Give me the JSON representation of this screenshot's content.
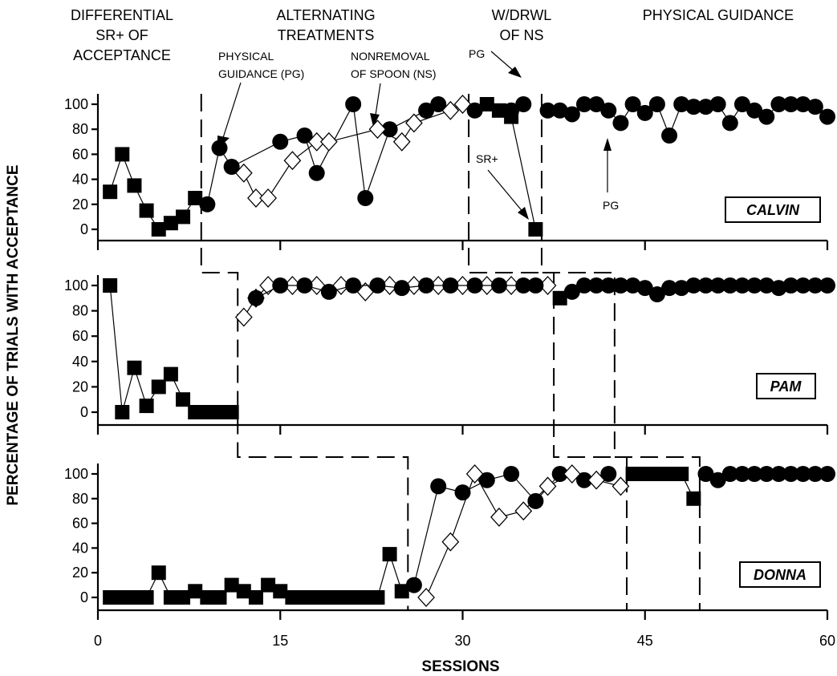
{
  "phase_labels": [
    {
      "id": "p1-l1",
      "text": "DIFFERENTIAL"
    },
    {
      "id": "p1-l2",
      "text": "SR+ OF"
    },
    {
      "id": "p1-l3",
      "text": "ACCEPTANCE"
    },
    {
      "id": "p2-l1",
      "text": "ALTERNATING"
    },
    {
      "id": "p2-l2",
      "text": "TREATMENTS"
    },
    {
      "id": "p3-l1",
      "text": "W/DRWL"
    },
    {
      "id": "p3-l2",
      "text": "OF NS"
    },
    {
      "id": "p4-l1",
      "text": "PHYSICAL GUIDANCE"
    }
  ],
  "annotations": [
    {
      "id": "pg-l1",
      "text": "PHYSICAL"
    },
    {
      "id": "pg-l2",
      "text": "GUIDANCE (PG)"
    },
    {
      "id": "ns-l1",
      "text": "NONREMOVAL"
    },
    {
      "id": "ns-l2",
      "text": "OF SPOON (NS)"
    },
    {
      "id": "pg2",
      "text": "PG"
    },
    {
      "id": "srplus",
      "text": "SR+"
    },
    {
      "id": "pg3",
      "text": "PG"
    }
  ],
  "chart_data": {
    "type": "line",
    "xlabel": "SESSIONS",
    "ylabel": "PERCENTAGE OF TRIALS WITH ACCEPTANCE",
    "xlim": [
      0,
      60
    ],
    "x_ticks": [
      0,
      15,
      30,
      45,
      60
    ],
    "ylim": [
      0,
      100
    ],
    "y_ticks": [
      0,
      20,
      40,
      60,
      80,
      100
    ],
    "panels": [
      {
        "participant": "CALVIN",
        "series": [
          {
            "marker": "filled-square",
            "points": [
              [
                1,
                30
              ],
              [
                2,
                60
              ],
              [
                3,
                35
              ],
              [
                4,
                15
              ],
              [
                5,
                0
              ],
              [
                6,
                5
              ],
              [
                7,
                10
              ],
              [
                8,
                25
              ]
            ]
          },
          {
            "marker": "filled-circle",
            "points": [
              [
                9,
                20
              ],
              [
                10,
                65
              ],
              [
                11,
                50
              ],
              [
                15,
                70
              ],
              [
                17,
                75
              ],
              [
                18,
                45
              ],
              [
                21,
                100
              ],
              [
                22,
                25
              ],
              [
                24,
                80
              ],
              [
                27,
                95
              ],
              [
                28,
                100
              ]
            ]
          },
          {
            "marker": "open-diamond",
            "points": [
              [
                12,
                45
              ],
              [
                13,
                25
              ],
              [
                14,
                25
              ],
              [
                16,
                55
              ],
              [
                18,
                70
              ],
              [
                19,
                70
              ],
              [
                23,
                80
              ],
              [
                25,
                70
              ],
              [
                26,
                85
              ],
              [
                29,
                95
              ],
              [
                30,
                100
              ]
            ]
          },
          {
            "marker": "filled-circle",
            "points": [
              [
                31,
                95
              ],
              [
                34,
                95
              ],
              [
                35,
                100
              ]
            ]
          },
          {
            "marker": "filled-square",
            "points": [
              [
                32,
                100
              ],
              [
                33,
                95
              ],
              [
                34,
                90
              ],
              [
                36,
                0
              ]
            ]
          },
          {
            "marker": "filled-circle",
            "points": [
              [
                37,
                95
              ],
              [
                38,
                95
              ],
              [
                39,
                92
              ],
              [
                40,
                100
              ],
              [
                41,
                100
              ],
              [
                42,
                95
              ],
              [
                43,
                85
              ],
              [
                44,
                100
              ],
              [
                45,
                93
              ],
              [
                46,
                100
              ],
              [
                47,
                75
              ],
              [
                48,
                100
              ],
              [
                49,
                98
              ],
              [
                50,
                98
              ],
              [
                51,
                100
              ],
              [
                52,
                85
              ],
              [
                53,
                100
              ],
              [
                54,
                95
              ],
              [
                55,
                90
              ],
              [
                56,
                100
              ],
              [
                57,
                100
              ],
              [
                58,
                100
              ],
              [
                59,
                98
              ],
              [
                60,
                90
              ]
            ]
          }
        ]
      },
      {
        "participant": "PAM",
        "series": [
          {
            "marker": "filled-square",
            "points": [
              [
                1,
                100
              ],
              [
                2,
                0
              ],
              [
                3,
                35
              ],
              [
                4,
                5
              ],
              [
                5,
                20
              ],
              [
                6,
                30
              ],
              [
                7,
                10
              ],
              [
                8,
                0
              ],
              [
                9,
                0
              ],
              [
                10,
                0
              ],
              [
                11,
                0
              ]
            ]
          },
          {
            "marker": "open-diamond",
            "points": [
              [
                12,
                75
              ],
              [
                13,
                90
              ],
              [
                14,
                100
              ],
              [
                16,
                100
              ],
              [
                18,
                100
              ],
              [
                20,
                100
              ],
              [
                22,
                95
              ],
              [
                24,
                100
              ],
              [
                26,
                100
              ],
              [
                28,
                100
              ],
              [
                30,
                100
              ],
              [
                32,
                100
              ],
              [
                34,
                100
              ],
              [
                37,
                100
              ]
            ]
          },
          {
            "marker": "filled-circle",
            "points": [
              [
                13,
                90
              ],
              [
                15,
                100
              ],
              [
                17,
                100
              ],
              [
                19,
                95
              ],
              [
                21,
                100
              ],
              [
                23,
                100
              ],
              [
                25,
                98
              ],
              [
                27,
                100
              ],
              [
                29,
                100
              ],
              [
                31,
                100
              ],
              [
                33,
                100
              ],
              [
                35,
                100
              ],
              [
                36,
                100
              ]
            ]
          },
          {
            "marker": "filled-square",
            "points": [
              [
                38,
                90
              ]
            ]
          },
          {
            "marker": "filled-circle",
            "points": [
              [
                39,
                95
              ],
              [
                40,
                100
              ],
              [
                41,
                100
              ],
              [
                42,
                100
              ],
              [
                43,
                100
              ],
              [
                44,
                100
              ],
              [
                45,
                98
              ],
              [
                46,
                93
              ],
              [
                47,
                98
              ],
              [
                48,
                98
              ],
              [
                49,
                100
              ],
              [
                50,
                100
              ],
              [
                51,
                100
              ],
              [
                52,
                100
              ],
              [
                53,
                100
              ],
              [
                54,
                100
              ],
              [
                55,
                100
              ],
              [
                56,
                98
              ],
              [
                57,
                100
              ],
              [
                58,
                100
              ],
              [
                59,
                100
              ],
              [
                60,
                100
              ]
            ]
          }
        ]
      },
      {
        "participant": "DONNA",
        "series": [
          {
            "marker": "filled-square",
            "points": [
              [
                1,
                0
              ],
              [
                2,
                0
              ],
              [
                3,
                0
              ],
              [
                4,
                0
              ],
              [
                5,
                20
              ],
              [
                6,
                0
              ],
              [
                7,
                0
              ],
              [
                8,
                5
              ],
              [
                9,
                0
              ],
              [
                10,
                0
              ],
              [
                11,
                10
              ],
              [
                12,
                5
              ],
              [
                13,
                0
              ],
              [
                14,
                10
              ],
              [
                15,
                5
              ],
              [
                16,
                0
              ],
              [
                17,
                0
              ],
              [
                18,
                0
              ],
              [
                19,
                0
              ],
              [
                20,
                0
              ],
              [
                21,
                0
              ],
              [
                22,
                0
              ],
              [
                23,
                0
              ],
              [
                24,
                35
              ],
              [
                25,
                5
              ]
            ]
          },
          {
            "marker": "filled-circle",
            "points": [
              [
                26,
                10
              ],
              [
                28,
                90
              ],
              [
                30,
                85
              ],
              [
                32,
                95
              ],
              [
                34,
                100
              ],
              [
                36,
                78
              ],
              [
                38,
                100
              ],
              [
                40,
                95
              ],
              [
                42,
                100
              ]
            ]
          },
          {
            "marker": "open-diamond",
            "points": [
              [
                27,
                0
              ],
              [
                29,
                45
              ],
              [
                31,
                100
              ],
              [
                33,
                65
              ],
              [
                35,
                70
              ],
              [
                37,
                90
              ],
              [
                39,
                100
              ],
              [
                41,
                95
              ],
              [
                43,
                90
              ]
            ]
          },
          {
            "marker": "filled-square",
            "points": [
              [
                44,
                100
              ],
              [
                45,
                100
              ],
              [
                46,
                100
              ],
              [
                47,
                100
              ],
              [
                48,
                100
              ],
              [
                49,
                80
              ]
            ]
          },
          {
            "marker": "filled-circle",
            "points": [
              [
                50,
                100
              ],
              [
                51,
                95
              ],
              [
                52,
                100
              ],
              [
                53,
                100
              ],
              [
                54,
                100
              ],
              [
                55,
                100
              ],
              [
                56,
                100
              ],
              [
                57,
                100
              ],
              [
                58,
                100
              ],
              [
                59,
                100
              ],
              [
                60,
                100
              ]
            ]
          }
        ]
      }
    ],
    "phase_change_x": {
      "CALVIN": [
        8.5,
        30.5,
        36.5
      ],
      "PAM": [
        11.5,
        37.5,
        42.5
      ],
      "DONNA": [
        25.5,
        43.5,
        49.5
      ]
    }
  }
}
